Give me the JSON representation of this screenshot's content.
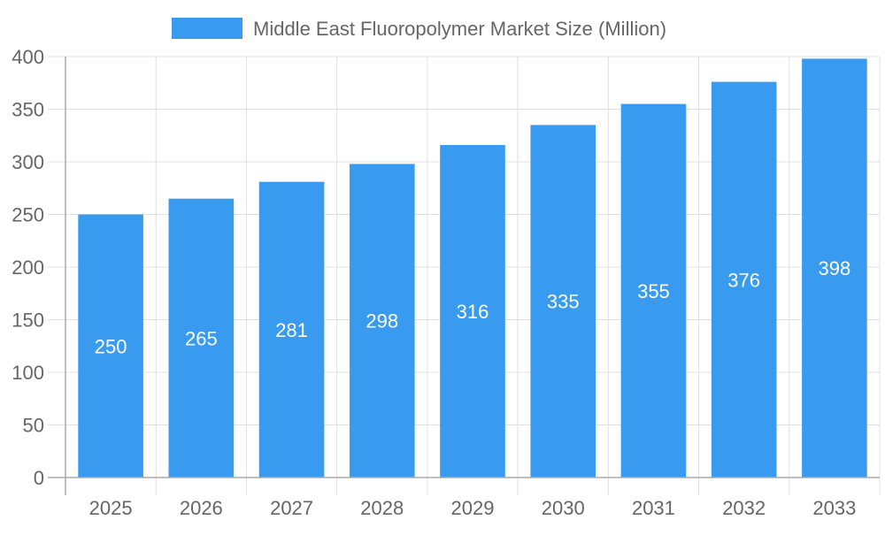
{
  "chart_data": {
    "type": "bar",
    "title": "",
    "xlabel": "",
    "ylabel": "",
    "categories": [
      "2025",
      "2026",
      "2027",
      "2028",
      "2029",
      "2030",
      "2031",
      "2032",
      "2033"
    ],
    "series": [
      {
        "name": "Middle East Fluoropolymer Market Size (Million)",
        "values": [
          250,
          265,
          281,
          298,
          316,
          335,
          355,
          376,
          398
        ],
        "color": "#399bf0"
      }
    ],
    "ylim": [
      0,
      400
    ],
    "yticks": [
      0,
      50,
      100,
      150,
      200,
      250,
      300,
      350,
      400
    ],
    "grid": true,
    "legend_position": "top",
    "data_labels": true
  }
}
